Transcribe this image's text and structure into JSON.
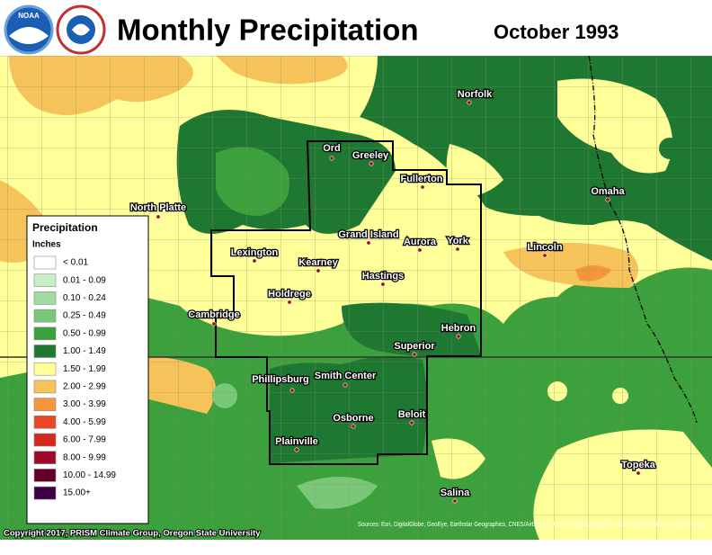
{
  "header": {
    "title": "Monthly Precipitation",
    "period": "October 1993"
  },
  "cities": [
    "Norfolk",
    "Ord",
    "Greeley",
    "Fullerton",
    "North Platte",
    "Omaha",
    "Grand Island",
    "Aurora",
    "York",
    "Lincoln",
    "Lexington",
    "Kearney",
    "Hastings",
    "Holdrege",
    "Cambridge",
    "Hebron",
    "Superior",
    "Phillipsburg",
    "Smith Center",
    "Beloit",
    "Osborne",
    "Plainville",
    "Topeka",
    "Salina"
  ],
  "legend": {
    "title": "Precipitation",
    "units": "Inches",
    "entries": [
      {
        "label": "< 0.01",
        "color": "#ffffff"
      },
      {
        "label": "0.01 - 0.09",
        "color": "#c8f0c8"
      },
      {
        "label": "0.10 - 0.24",
        "color": "#a0dca0"
      },
      {
        "label": "0.25 - 0.49",
        "color": "#78c878"
      },
      {
        "label": "0.50 - 0.99",
        "color": "#3ca03c"
      },
      {
        "label": "1.00 - 1.49",
        "color": "#1e7832"
      },
      {
        "label": "1.50 - 1.99",
        "color": "#ffff99"
      },
      {
        "label": "2.00 - 2.99",
        "color": "#f5c35a"
      },
      {
        "label": "3.00 - 3.99",
        "color": "#f5963c"
      },
      {
        "label": "4.00 - 5.99",
        "color": "#eb4628"
      },
      {
        "label": "6.00 - 7.99",
        "color": "#d2281e"
      },
      {
        "label": "8.00 - 9.99",
        "color": "#a00a28"
      },
      {
        "label": "10.00 - 14.99",
        "color": "#640028"
      },
      {
        "label": "15.00+",
        "color": "#3c0046"
      }
    ]
  },
  "footer": {
    "copyright": "Copyright 2017, PRISM Climate Group, Oregon State University",
    "sources": "Sources: Esri, DigitalGlobe, GeoEye, Earthstar Geographics, CNES/Airbus DS, USDA, USGS, AeroGRID, IGN, and the GIS User Community"
  }
}
